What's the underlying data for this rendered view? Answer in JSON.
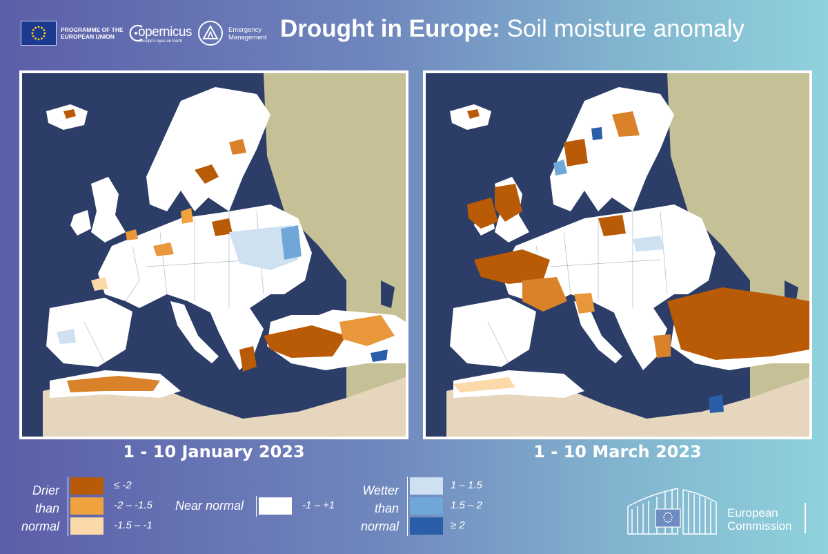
{
  "header": {
    "program_line1": "PROGRAMME OF THE",
    "program_line2": "EUROPEAN UNION",
    "copernicus_name": "opernicus",
    "copernicus_tagline": "Europe's eyes on Earth",
    "em_line1": "Emergency",
    "em_line2": "Management",
    "title_bold": "Drought in Europe:",
    "title_light": " Soil moisture anomaly"
  },
  "maps": [
    {
      "id": "january",
      "date_label": "1 - 10 January 2023"
    },
    {
      "id": "march",
      "date_label": "1 - 10 March 2023"
    }
  ],
  "legend": {
    "drier_label": [
      "Drier",
      "than",
      "normal"
    ],
    "near_normal_label": "Near normal",
    "wetter_label": [
      "Wetter",
      "than",
      "normal"
    ],
    "drier_classes": [
      {
        "label": "≤ -2",
        "color": "#b85a06"
      },
      {
        "label": "-2 – -1.5",
        "color": "#f0a23e"
      },
      {
        "label": "-1.5 – -1",
        "color": "#fcd9a8"
      }
    ],
    "near_normal_class": {
      "label": "-1 – +1",
      "color": "#ffffff"
    },
    "wetter_classes": [
      {
        "label": "1 – 1.5",
        "color": "#cfe0f0"
      },
      {
        "label": "1.5 – 2",
        "color": "#6fa8d8"
      },
      {
        "label": "≥ 2",
        "color": "#2a5ea8"
      }
    ]
  },
  "footer": {
    "ec_line1": "European",
    "ec_line2": "Commission"
  },
  "colors": {
    "sea": "#2c3e68",
    "land_normal": "#ffffff",
    "land_outside": "#c6c097",
    "africa_desert": "#e6d6bd"
  }
}
